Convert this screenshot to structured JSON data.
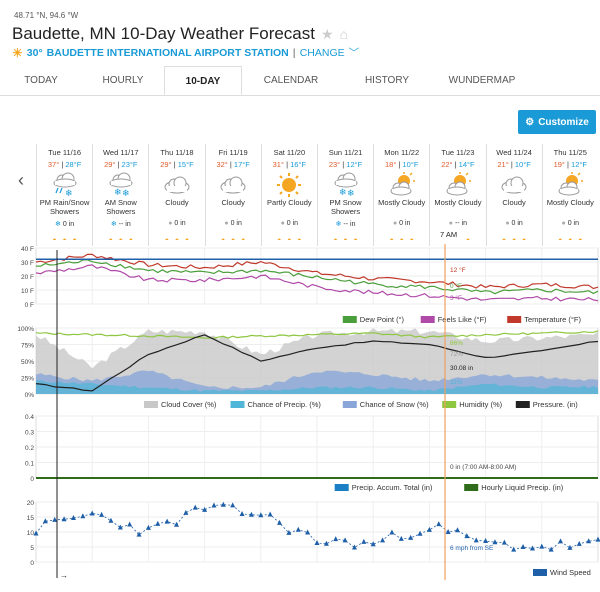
{
  "header": {
    "coords": "48.71 °N, 94.6 °W",
    "title": "Baudette, MN 10-Day Weather Forecast",
    "station_temp": "30°",
    "station_name": "BAUDETTE INTERNATIONAL AIRPORT STATION",
    "change_label": "CHANGE"
  },
  "tabs": [
    "TODAY",
    "HOURLY",
    "10-DAY",
    "CALENDAR",
    "HISTORY",
    "WUNDERMAP"
  ],
  "active_tab": "10-DAY",
  "customize_label": "Customize",
  "days": [
    {
      "date": "Tue 11/16",
      "hi": "37°",
      "lo": "28°F",
      "cond": "PM Rain/Snow Showers",
      "precip": "0 in",
      "icon": "rain-snow-icon"
    },
    {
      "date": "Wed 11/17",
      "hi": "29°",
      "lo": "23°F",
      "cond": "AM Snow Showers",
      "precip": "-- in",
      "icon": "snow-icon"
    },
    {
      "date": "Thu 11/18",
      "hi": "29°",
      "lo": "15°F",
      "cond": "Cloudy",
      "precip": "0 in",
      "icon": "cloud-icon"
    },
    {
      "date": "Fri 11/19",
      "hi": "32°",
      "lo": "17°F",
      "cond": "Cloudy",
      "precip": "0 in",
      "icon": "cloud-icon"
    },
    {
      "date": "Sat 11/20",
      "hi": "31°",
      "lo": "16°F",
      "cond": "Partly Cloudy",
      "precip": "0 in",
      "icon": "sun-icon"
    },
    {
      "date": "Sun 11/21",
      "hi": "23°",
      "lo": "12°F",
      "cond": "PM Snow Showers",
      "precip": "-- in",
      "icon": "snow-icon"
    },
    {
      "date": "Mon 11/22",
      "hi": "18°",
      "lo": "10°F",
      "cond": "Mostly Cloudy",
      "precip": "0 in",
      "icon": "partly-cloudy-icon"
    },
    {
      "date": "Tue 11/23",
      "hi": "22°",
      "lo": "14°F",
      "cond": "Mostly Cloudy",
      "precip": "-- in",
      "icon": "partly-cloudy-icon"
    },
    {
      "date": "Wed 11/24",
      "hi": "21°",
      "lo": "10°F",
      "cond": "Cloudy",
      "precip": "0 in",
      "icon": "cloud-icon"
    },
    {
      "date": "Thu 11/25",
      "hi": "19°",
      "lo": "12°F",
      "cond": "Mostly Cloudy",
      "precip": "0 in",
      "icon": "partly-cloudy-icon"
    }
  ],
  "marker_label": "7 AM",
  "chart1": {
    "yticks": [
      "40 F",
      "30 F",
      "20 F",
      "10 F",
      "0 F"
    ],
    "labels": [
      "12 °F",
      "0 °F",
      "3 °F"
    ],
    "legend": [
      "Dew Point (°)",
      "Feels Like (°F)",
      "Temperature (°F)"
    ],
    "colors": {
      "dew": "#4a9e3b",
      "feels": "#b04aa8",
      "temp": "#c0392b",
      "freezing": "#1f5fa8"
    }
  },
  "chart2": {
    "yticks": [
      "100%",
      "75%",
      "50%",
      "25%",
      "0%"
    ],
    "labels": [
      "86%",
      "72%",
      "30.08 in",
      "11%"
    ],
    "legend": [
      "Cloud Cover (%)",
      "Chance of Precip. (%)",
      "Chance of Snow (%)",
      "Humidity (%)",
      "Pressure. (in)"
    ],
    "colors": {
      "cloud": "#c8c8c8",
      "precip": "#4fb6d8",
      "snow": "#8aa6d8",
      "humidity": "#8dc63f",
      "pressure": "#222222"
    }
  },
  "chart3": {
    "yticks": [
      "0.4",
      "0.3",
      "0.2",
      "0.1",
      "0"
    ],
    "labels": [
      "0 in (7:00 AM-8:00 AM)"
    ],
    "legend": [
      "Precip. Accum. Total (in)",
      "Hourly Liquid Precip. (in)"
    ],
    "colors": {
      "accum": "#1a7fc4",
      "hourly": "#2e6b1a"
    }
  },
  "chart4": {
    "yticks": [
      "20",
      "15",
      "10",
      "5",
      "0"
    ],
    "labels": [
      "6 mph from SE"
    ],
    "legend": [
      "Wind Speed"
    ],
    "colors": {
      "wind": "#1f5fa8"
    }
  },
  "bottom_arrow": "→",
  "chart_data": [
    {
      "type": "line",
      "title": "",
      "ylim": [
        0,
        40
      ],
      "x": [
        0,
        10,
        20,
        30,
        40,
        50,
        60,
        70,
        80,
        90,
        100
      ],
      "series": [
        {
          "name": "Temperature (°F)",
          "values": [
            30,
            35,
            28,
            26,
            30,
            22,
            18,
            16,
            12,
            14,
            12
          ]
        },
        {
          "name": "Dew Point (°)",
          "values": [
            27,
            31,
            24,
            22,
            24,
            19,
            14,
            12,
            8,
            10,
            8
          ]
        },
        {
          "name": "Feels Like (°F)",
          "values": [
            22,
            27,
            17,
            17,
            20,
            12,
            8,
            6,
            3,
            4,
            3
          ]
        }
      ]
    },
    {
      "type": "line",
      "title": "",
      "ylim": [
        0,
        100
      ],
      "x": [
        0,
        10,
        20,
        30,
        40,
        50,
        60,
        70,
        80,
        90,
        100
      ],
      "series": [
        {
          "name": "Cloud Cover (%)",
          "values": [
            90,
            40,
            95,
            95,
            60,
            90,
            95,
            95,
            80,
            85,
            90
          ]
        },
        {
          "name": "Chance of Precip. (%)",
          "values": [
            20,
            15,
            10,
            5,
            5,
            10,
            10,
            5,
            15,
            10,
            11
          ]
        },
        {
          "name": "Chance of Snow (%)",
          "values": [
            30,
            20,
            35,
            10,
            10,
            35,
            30,
            20,
            30,
            25,
            20
          ]
        },
        {
          "name": "Humidity (%)",
          "values": [
            92,
            90,
            88,
            85,
            88,
            90,
            92,
            86,
            90,
            92,
            95
          ]
        },
        {
          "name": "Pressure. (in)",
          "values": [
            15,
            5,
            60,
            90,
            50,
            70,
            80,
            75,
            55,
            65,
            80
          ]
        }
      ]
    },
    {
      "type": "line",
      "title": "",
      "ylim": [
        0,
        0.4
      ],
      "x": [
        0,
        100
      ],
      "series": [
        {
          "name": "Precip. Accum. Total (in)",
          "values": [
            0,
            0
          ]
        },
        {
          "name": "Hourly Liquid Precip. (in)",
          "values": [
            0,
            0
          ]
        }
      ]
    },
    {
      "type": "line",
      "title": "",
      "ylim": [
        0,
        20
      ],
      "x": [
        0,
        10,
        20,
        30,
        40,
        50,
        60,
        70,
        80,
        90,
        100
      ],
      "series": [
        {
          "name": "Wind Speed",
          "values": [
            11,
            16,
            10,
            18,
            16,
            7,
            6,
            12,
            6,
            5,
            6
          ]
        }
      ]
    }
  ]
}
